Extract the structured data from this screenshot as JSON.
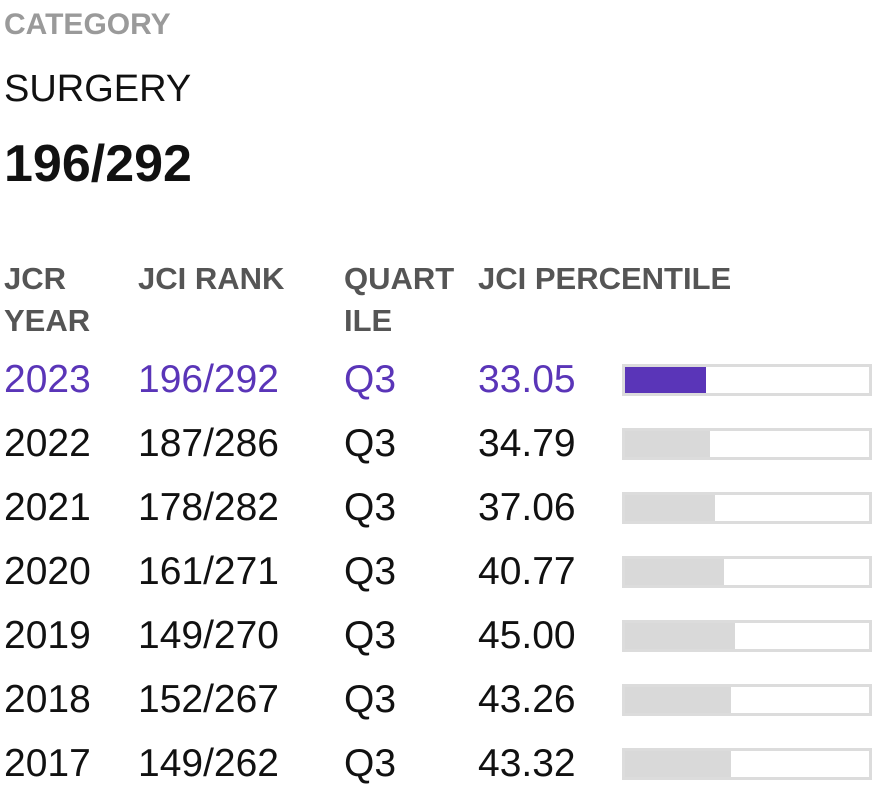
{
  "header": {
    "label": "CATEGORY",
    "category": "SURGERY",
    "rank": "196/292"
  },
  "table": {
    "columns": [
      "JCR YEAR",
      "JCI RANK",
      "QUARTILE",
      "JCI PERCENTILE"
    ],
    "rows": [
      [
        "2023",
        "196/292",
        "Q3",
        "33.05"
      ],
      [
        "2022",
        "187/286",
        "Q3",
        "34.79"
      ],
      [
        "2021",
        "178/282",
        "Q3",
        "37.06"
      ],
      [
        "2020",
        "161/271",
        "Q3",
        "40.77"
      ],
      [
        "2019",
        "149/270",
        "Q3",
        "45.00"
      ],
      [
        "2018",
        "152/267",
        "Q3",
        "43.26"
      ],
      [
        "2017",
        "149/262",
        "Q3",
        "43.32"
      ]
    ]
  }
}
